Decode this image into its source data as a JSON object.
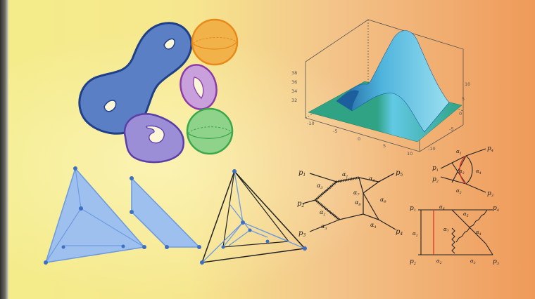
{
  "background": {
    "gradient_stops": [
      "#f4ec8a",
      "#f6e78e",
      "#f3c48a",
      "#ef9a5a"
    ],
    "left_strip_color": "#6e6e68"
  },
  "surfaces": {
    "genus_two_color": "#5b7fc4",
    "sphere_orange_color": "#f2b24a",
    "torus_purple_color": "#c9a0dc",
    "torus_violet_color": "#9b8ed6",
    "sphere_green_color": "#8fd38a"
  },
  "plot3d": {
    "z_ticks": [
      "38",
      "36",
      "34",
      "32"
    ],
    "x_ticks": [
      "-10",
      "-5",
      "0",
      "5",
      "10"
    ],
    "y_ticks": [
      "10",
      "5",
      "0",
      "-5",
      "-10"
    ],
    "surface_colors": [
      "#2fa384",
      "#62c9e6",
      "#1c5f9c"
    ]
  },
  "diagrams": {
    "line_color": "#6e9be0",
    "vertex_color": "#3d6fc2",
    "fill_color": "#9ec0ee"
  },
  "feynman_big": {
    "labels": {
      "p1": "p",
      "p1_sub": "1",
      "p2": "p",
      "p2_sub": "2",
      "p3": "p",
      "p3_sub": "3",
      "p4": "p",
      "p4_sub": "4",
      "p5": "p",
      "p5_sub": "5",
      "a1": "α",
      "a1_sub": "1",
      "a2": "α",
      "a2_sub": "2",
      "a3": "α",
      "a3_sub": "3",
      "a4": "α",
      "a4_sub": "4",
      "a6": "α",
      "a6_sub": "6",
      "a7": "α",
      "a7_sub": "7",
      "a8": "α",
      "a8_sub": "8",
      "a9": "α",
      "a9_sub": "9",
      "a3b": "α",
      "a3b_sub": "3"
    }
  },
  "feynman_small": {
    "labels": {
      "p1": "p",
      "p1_sub": "1",
      "p2": "p",
      "p2_sub": "2",
      "p3": "p",
      "p3_sub": "3",
      "p4": "p",
      "p4_sub": "4",
      "a1": "α",
      "a1_sub": "1",
      "a2": "α",
      "a2_sub": "2",
      "a3": "α",
      "a3_sub": "3",
      "a4": "α",
      "a4_sub": "4"
    }
  },
  "feynman_box": {
    "labels": {
      "p1": "p",
      "p1_sub": "1",
      "p2": "p",
      "p2_sub": "2",
      "p3": "p",
      "p3_sub": "3",
      "p4": "p",
      "p4_sub": "4",
      "a1": "α",
      "a1_sub": "1",
      "a2": "α",
      "a2_sub": "2",
      "a3": "α",
      "a3_sub": "3",
      "a4": "α",
      "a4_sub": "4",
      "a5": "α",
      "a5_sub": "5",
      "a6": "α",
      "a6_sub": "6",
      "a7": "α",
      "a7_sub": "7"
    }
  }
}
